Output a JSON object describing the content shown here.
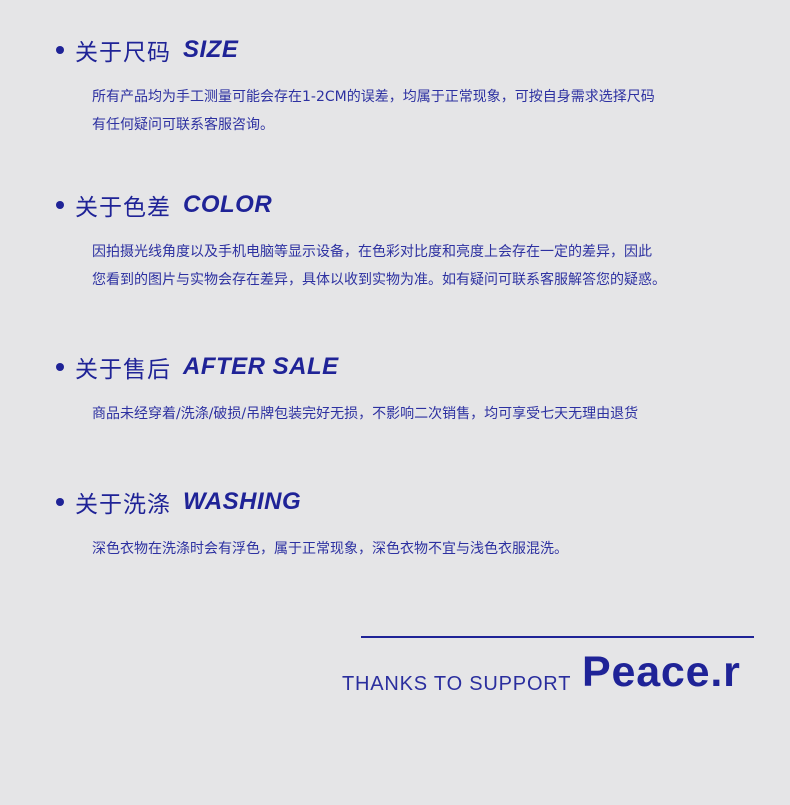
{
  "sections": [
    {
      "title_zh": "关于尺码",
      "title_en": "SIZE",
      "lines": [
        "所有产品均为手工测量可能会存在1-2CM的误差，均属于正常现象，可按自身需求选择尺码",
        "有任何疑问可联系客服咨询。"
      ]
    },
    {
      "title_zh": "关于色差",
      "title_en": "COLOR",
      "lines": [
        "因拍摄光线角度以及手机电脑等显示设备，在色彩对比度和亮度上会存在一定的差异，因此",
        "您看到的图片与实物会存在差异，具体以收到实物为准。如有疑问可联系客服解答您的疑惑。"
      ]
    },
    {
      "title_zh": "关于售后",
      "title_en": "AFTER SALE",
      "lines": [
        "商品未经穿着/洗涤/破损/吊牌包装完好无损，不影响二次销售，均可享受七天无理由退货"
      ]
    },
    {
      "title_zh": "关于洗涤",
      "title_en": "WASHING",
      "lines": [
        "深色衣物在洗涤时会有浮色，属于正常现象，深色衣物不宜与浅色衣服混洗。"
      ]
    }
  ],
  "footer": {
    "thanks": "THANKS TO SUPPORT",
    "brand": "Peace.r"
  },
  "colors": {
    "background": "#e5e5e7",
    "accent": "#1f2397"
  }
}
